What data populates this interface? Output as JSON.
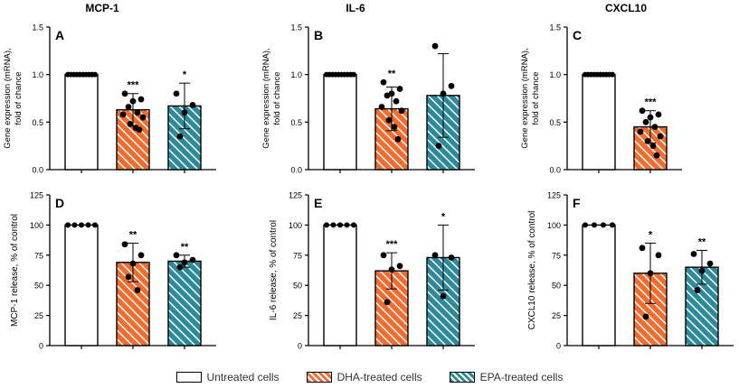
{
  "colors": {
    "untreated": "#ffffff",
    "dha": "#f26b2f",
    "epa": "#2c8a9b",
    "axis": "#000000",
    "points": "#000000"
  },
  "legend": {
    "items": [
      {
        "label": "Untreated cells",
        "color": "#ffffff",
        "pattern": "none"
      },
      {
        "label": "DHA-treated cells",
        "color": "#f26b2f",
        "pattern": "hatch"
      },
      {
        "label": "EPA-treated cells",
        "color": "#2c8a9b",
        "pattern": "hatch"
      }
    ],
    "placement": "bottom"
  },
  "chart_data": [
    {
      "type": "bar",
      "panel": "A",
      "title": "MCP-1",
      "ylabel": "Gene expression (mRNA), fold of chance",
      "ylim": [
        0,
        1.5
      ],
      "yticks": [
        "0.0",
        "0.5",
        "1.0",
        "1.5"
      ],
      "categories": [
        "Untreated cells",
        "DHA-treated cells",
        "EPA-treated cells"
      ],
      "values": [
        1.0,
        0.63,
        0.67
      ],
      "errors": [
        0,
        0.17,
        0.24
      ],
      "significance": [
        "",
        "***",
        "*"
      ],
      "points": [
        [
          1,
          1,
          1,
          1,
          1,
          1,
          1,
          1,
          1,
          1
        ],
        [
          0.8,
          0.74,
          0.72,
          0.66,
          0.6,
          0.58,
          0.55,
          0.48,
          0.44,
          0.42
        ],
        [
          0.8,
          0.68,
          0.6,
          0.35
        ]
      ]
    },
    {
      "type": "bar",
      "panel": "B",
      "title": "IL-6",
      "ylabel": "Gene expression (mRNA), fold of chance",
      "ylim": [
        0,
        1.5
      ],
      "yticks": [
        "0.0",
        "0.5",
        "1.0",
        "1.5"
      ],
      "categories": [
        "Untreated cells",
        "DHA-treated cells",
        "EPA-treated cells"
      ],
      "values": [
        1.0,
        0.64,
        0.78
      ],
      "errors": [
        0,
        0.23,
        0.44
      ],
      "significance": [
        "",
        "**",
        ""
      ],
      "points": [
        [
          1,
          1,
          1,
          1,
          1,
          1,
          1,
          1,
          1,
          1
        ],
        [
          0.92,
          0.85,
          0.8,
          0.78,
          0.72,
          0.66,
          0.62,
          0.52,
          0.45,
          0.32
        ],
        [
          1.3,
          0.88,
          0.8,
          0.25
        ]
      ]
    },
    {
      "type": "bar",
      "panel": "C",
      "title": "CXCL10",
      "ylabel": "Gene expression (mRNA), fold of chance",
      "ylim": [
        0,
        1.5
      ],
      "yticks": [
        "0.0",
        "0.5",
        "1.0",
        "1.5"
      ],
      "categories": [
        "Untreated cells",
        "DHA-treated cells"
      ],
      "values": [
        1.0,
        0.45
      ],
      "errors": [
        0,
        0.17
      ],
      "significance": [
        "",
        "***"
      ],
      "points": [
        [
          1,
          1,
          1,
          1,
          1,
          1,
          1,
          1,
          1,
          1
        ],
        [
          0.62,
          0.58,
          0.55,
          0.5,
          0.45,
          0.4,
          0.35,
          0.3,
          0.25,
          0.15
        ]
      ]
    },
    {
      "type": "bar",
      "panel": "D",
      "title": "",
      "ylabel": "MCP-1 release, % of control",
      "ylim": [
        0,
        125
      ],
      "yticks": [
        "0",
        "25",
        "50",
        "75",
        "100",
        "125"
      ],
      "categories": [
        "Untreated cells",
        "DHA-treated cells",
        "EPA-treated cells"
      ],
      "values": [
        100,
        69,
        70
      ],
      "errors": [
        0,
        16,
        5
      ],
      "significance": [
        "",
        "**",
        "**"
      ],
      "points": [
        [
          100,
          100,
          100,
          100,
          100
        ],
        [
          84,
          75,
          68,
          57,
          46
        ],
        [
          75,
          71,
          69,
          65
        ]
      ]
    },
    {
      "type": "bar",
      "panel": "E",
      "title": "",
      "ylabel": "IL-6 release, % of control",
      "ylim": [
        0,
        125
      ],
      "yticks": [
        "0",
        "25",
        "50",
        "75",
        "100",
        "125"
      ],
      "categories": [
        "Untreated cells",
        "DHA-treated cells",
        "EPA-treated cells"
      ],
      "values": [
        100,
        62,
        73
      ],
      "errors": [
        0,
        15,
        27
      ],
      "significance": [
        "",
        "***",
        "*"
      ],
      "points": [
        [
          100,
          100,
          100,
          100,
          100
        ],
        [
          75,
          66,
          63,
          36
        ],
        [
          75,
          73,
          41
        ]
      ]
    },
    {
      "type": "bar",
      "panel": "F",
      "title": "",
      "ylabel": "CXCL10 release, % of control",
      "ylim": [
        0,
        125
      ],
      "yticks": [
        "0",
        "25",
        "50",
        "75",
        "100",
        "125"
      ],
      "categories": [
        "Untreated cells",
        "DHA-treated cells",
        "EPA-treated cells"
      ],
      "values": [
        100,
        60,
        65
      ],
      "errors": [
        0,
        25,
        14
      ],
      "significance": [
        "",
        "*",
        "**"
      ],
      "points": [
        [
          100,
          100,
          100,
          100
        ],
        [
          81,
          75,
          60,
          24
        ],
        [
          76,
          68,
          62,
          46
        ]
      ]
    }
  ]
}
